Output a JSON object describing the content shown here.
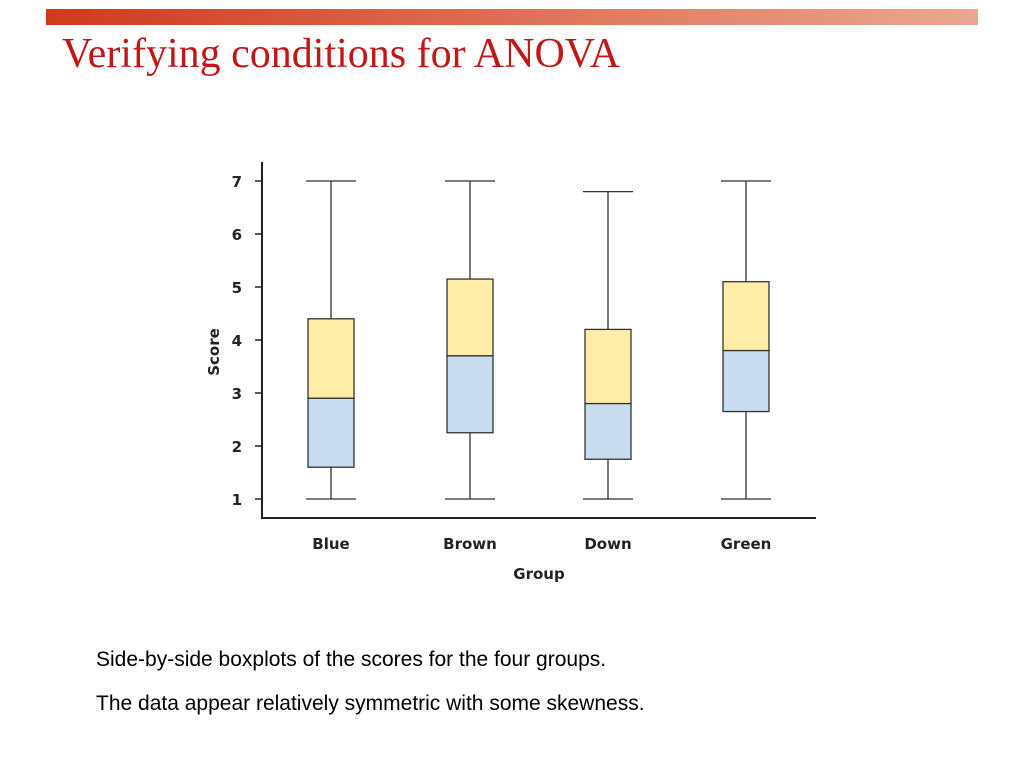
{
  "slide": {
    "title": "Verifying conditions for ANOVA",
    "captions": [
      "Side-by-side boxplots of the scores for the four groups.",
      "The data appear relatively symmetric with some skewness."
    ]
  },
  "colors": {
    "title": "#c01818",
    "top_bar_start": "#cf3a1c",
    "top_bar_end": "#eaa892",
    "upper_box": "#fdeda6",
    "lower_box": "#c9dcef",
    "box_stroke": "#333333",
    "axis": "#222222"
  },
  "chart_data": {
    "type": "boxplot",
    "title": "",
    "xlabel": "Group",
    "ylabel": "Score",
    "ylim": [
      1,
      7
    ],
    "yticks": [
      1,
      2,
      3,
      4,
      5,
      6,
      7
    ],
    "grid": false,
    "categories": [
      "Blue",
      "Brown",
      "Down",
      "Green"
    ],
    "boxes": [
      {
        "label": "Blue",
        "min": 1,
        "q1": 1.6,
        "median": 2.9,
        "q3": 4.4,
        "max": 7
      },
      {
        "label": "Brown",
        "min": 1,
        "q1": 2.25,
        "median": 3.7,
        "q3": 5.15,
        "max": 7
      },
      {
        "label": "Down",
        "min": 1,
        "q1": 1.75,
        "median": 2.8,
        "q3": 4.2,
        "max": 6.8
      },
      {
        "label": "Green",
        "min": 1,
        "q1": 2.65,
        "median": 3.8,
        "q3": 5.1,
        "max": 7
      }
    ]
  }
}
